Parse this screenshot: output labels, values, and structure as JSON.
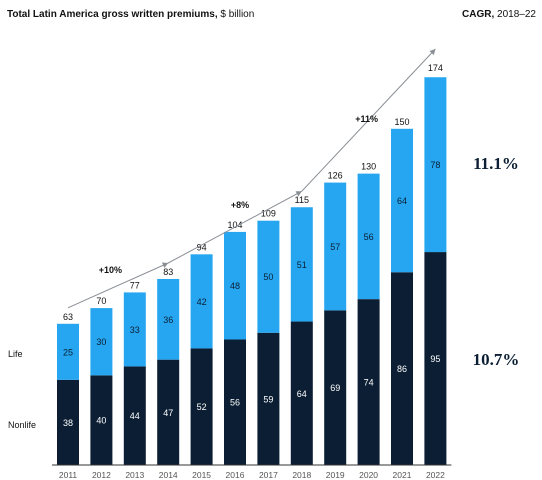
{
  "header": {
    "title_bold": "Total Latin America gross written premiums,",
    "title_unit": " $ billion",
    "cagr_bold": "CAGR,",
    "cagr_period": " 2018–22"
  },
  "chart_data": {
    "type": "bar",
    "stacked": true,
    "title": "Total Latin America gross written premiums, $ billion",
    "categories": [
      "2011",
      "2012",
      "2013",
      "2014",
      "2015",
      "2016",
      "2017",
      "2018",
      "2019",
      "2020",
      "2021",
      "2022"
    ],
    "series": [
      {
        "name": "Nonlife",
        "color": "#0b1e33",
        "values": [
          38,
          40,
          44,
          47,
          52,
          56,
          59,
          64,
          69,
          74,
          86,
          95
        ]
      },
      {
        "name": "Life",
        "color": "#26a6f1",
        "values": [
          25,
          30,
          33,
          36,
          42,
          48,
          50,
          51,
          57,
          56,
          64,
          78
        ]
      }
    ],
    "totals": [
      63,
      70,
      77,
      83,
      94,
      104,
      109,
      115,
      126,
      130,
      150,
      174
    ],
    "ylim": [
      0,
      180
    ],
    "growth_annotations": [
      {
        "label": "+10%",
        "from": "2011",
        "to": "2014"
      },
      {
        "label": "+8%",
        "from": "2014",
        "to": "2018"
      },
      {
        "label": "+11%",
        "from": "2018",
        "to": "2022"
      }
    ],
    "cagr": [
      {
        "series": "Life",
        "value": "11.1%"
      },
      {
        "series": "Nonlife",
        "value": "10.7%"
      }
    ],
    "series_labels": [
      "Life",
      "Nonlife"
    ]
  },
  "colors": {
    "nonlife": "#0b1e33",
    "life": "#26a6f1",
    "arrow": "#8a8f96",
    "axis": "#333333",
    "tick_text": "#555555"
  }
}
